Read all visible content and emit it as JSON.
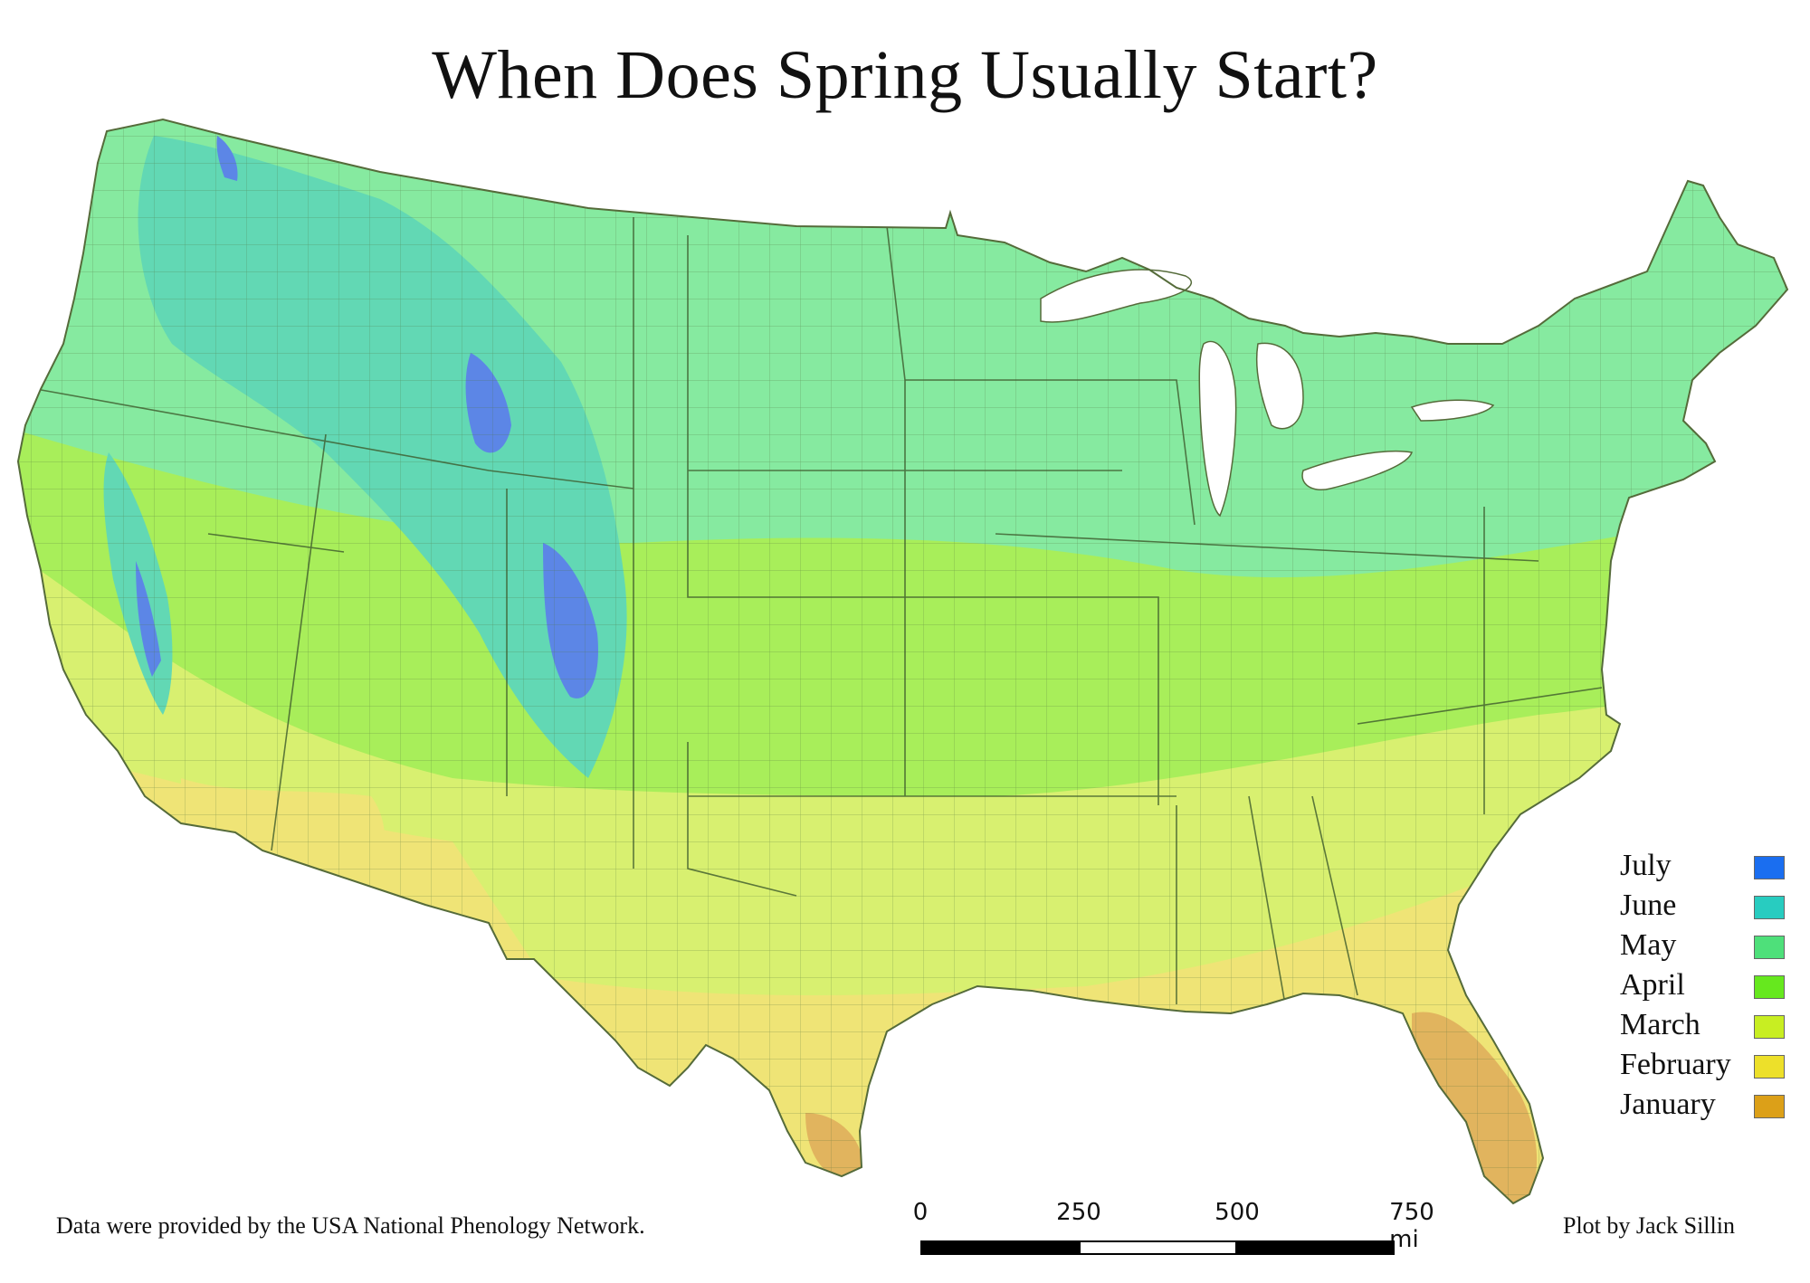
{
  "title": "When Does Spring Usually Start?",
  "legend": [
    {
      "label": "July",
      "color": "#1a6ef0"
    },
    {
      "label": "June",
      "color": "#28ccc0"
    },
    {
      "label": "May",
      "color": "#4ee07a"
    },
    {
      "label": "April",
      "color": "#66e81e"
    },
    {
      "label": "March",
      "color": "#c8ee22"
    },
    {
      "label": "February",
      "color": "#ede02a"
    },
    {
      "label": "January",
      "color": "#dca018"
    }
  ],
  "scale_bar": {
    "ticks": [
      "0",
      "250",
      "500",
      "750 mi"
    ]
  },
  "credit_left": "Data were provided by the USA National Phenology Network.",
  "credit_right": "Plot by Jack Sillin",
  "region_colors": {
    "may_north": "#86eaa0",
    "april_band": "#a8ee5a",
    "march_band": "#d8f070",
    "feb_band": "#efe476",
    "jan_florida": "#e1b45e",
    "june_mountains": "#62d8b4",
    "july_peaks": "#5c86e6",
    "great_lakes": "#ffffff"
  }
}
